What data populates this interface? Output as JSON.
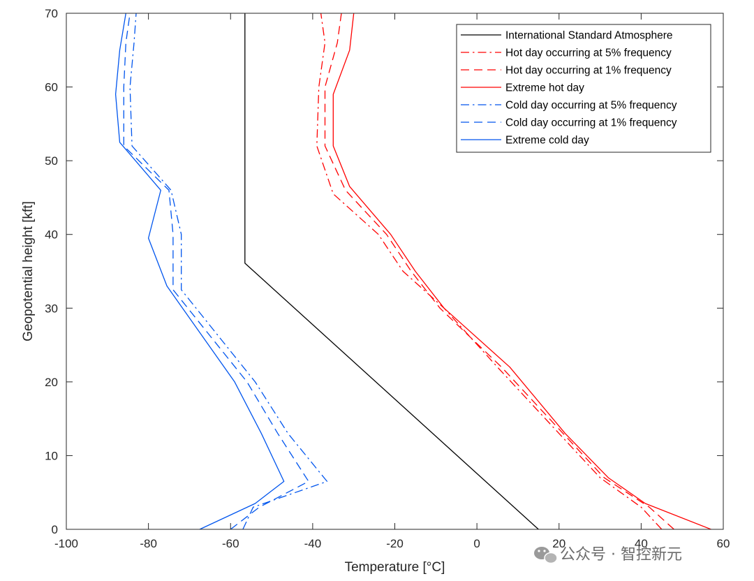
{
  "chart_data": {
    "type": "line",
    "xlabel": "Temperature [°C]",
    "ylabel": "Geopotential height [kft]",
    "xlim": [
      -100,
      60
    ],
    "ylim": [
      0,
      70
    ],
    "xticks": [
      -100,
      -80,
      -60,
      -40,
      -20,
      0,
      20,
      40,
      60
    ],
    "yticks": [
      0,
      10,
      20,
      30,
      40,
      50,
      60,
      70
    ],
    "grid": false,
    "legend_position": "top-right",
    "series": [
      {
        "name": "International Standard Atmosphere",
        "color": "#000000",
        "style": "solid",
        "points": [
          [
            15,
            0
          ],
          [
            -56.5,
            36.1
          ],
          [
            -56.5,
            70
          ]
        ]
      },
      {
        "name": "Hot day occurring at 5% frequency",
        "color": "#ff0000",
        "style": "dashdot",
        "points": [
          [
            45,
            0
          ],
          [
            40,
            3
          ],
          [
            30,
            7
          ],
          [
            20,
            13
          ],
          [
            5,
            22
          ],
          [
            -8,
            30
          ],
          [
            -18,
            35
          ],
          [
            -24,
            40
          ],
          [
            -35,
            45.5
          ],
          [
            -39,
            52
          ],
          [
            -38.5,
            60
          ],
          [
            -37,
            66
          ],
          [
            -38,
            70
          ]
        ]
      },
      {
        "name": "Hot day occurring at 1% frequency",
        "color": "#ff0000",
        "style": "dashed",
        "points": [
          [
            48,
            0
          ],
          [
            42,
            3
          ],
          [
            31,
            7
          ],
          [
            21,
            13
          ],
          [
            6,
            22
          ],
          [
            -9,
            30
          ],
          [
            -16,
            35
          ],
          [
            -22,
            40
          ],
          [
            -32,
            46
          ],
          [
            -37,
            52
          ],
          [
            -37,
            60
          ],
          [
            -34,
            66
          ],
          [
            -33,
            70
          ]
        ]
      },
      {
        "name": "Extreme hot day",
        "color": "#ff0000",
        "style": "solid",
        "points": [
          [
            57,
            0
          ],
          [
            41,
            3.5
          ],
          [
            32,
            7
          ],
          [
            21.5,
            13
          ],
          [
            8,
            22
          ],
          [
            -8,
            30
          ],
          [
            -15,
            35
          ],
          [
            -21,
            40
          ],
          [
            -31,
            46.5
          ],
          [
            -35,
            52
          ],
          [
            -35,
            59
          ],
          [
            -31,
            65
          ],
          [
            -30,
            70
          ]
        ]
      },
      {
        "name": "Cold day occurring at 5% frequency",
        "color": "#0055ee",
        "style": "dashdot",
        "points": [
          [
            -57,
            0
          ],
          [
            -54.5,
            3
          ],
          [
            -36.5,
            6.5
          ],
          [
            -46,
            13
          ],
          [
            -54,
            20
          ],
          [
            -72,
            32.5
          ],
          [
            -72,
            40
          ],
          [
            -74.5,
            46
          ],
          [
            -84,
            52
          ],
          [
            -84.5,
            60
          ],
          [
            -83.5,
            66
          ],
          [
            -83,
            70
          ]
        ]
      },
      {
        "name": "Cold day occurring at 1% frequency",
        "color": "#0055ee",
        "style": "dashed",
        "points": [
          [
            -60,
            0
          ],
          [
            -53,
            3
          ],
          [
            -41,
            6.5
          ],
          [
            -48.5,
            13
          ],
          [
            -56,
            20
          ],
          [
            -74,
            32.5
          ],
          [
            -74,
            40
          ],
          [
            -75,
            46
          ],
          [
            -86,
            52
          ],
          [
            -86,
            60
          ],
          [
            -85.5,
            66
          ],
          [
            -84.5,
            70
          ]
        ]
      },
      {
        "name": "Extreme cold day",
        "color": "#0055ee",
        "style": "solid",
        "points": [
          [
            -67.5,
            0
          ],
          [
            -54,
            3.5
          ],
          [
            -47,
            6.5
          ],
          [
            -52.5,
            13
          ],
          [
            -59,
            20
          ],
          [
            -75.5,
            33
          ],
          [
            -80,
            39.5
          ],
          [
            -77,
            46
          ],
          [
            -87,
            52.5
          ],
          [
            -88,
            59
          ],
          [
            -87,
            65
          ],
          [
            -85.5,
            70
          ]
        ]
      }
    ]
  },
  "watermark": {
    "icon": "wechat-icon",
    "text": "公众号 · 智控新元"
  }
}
